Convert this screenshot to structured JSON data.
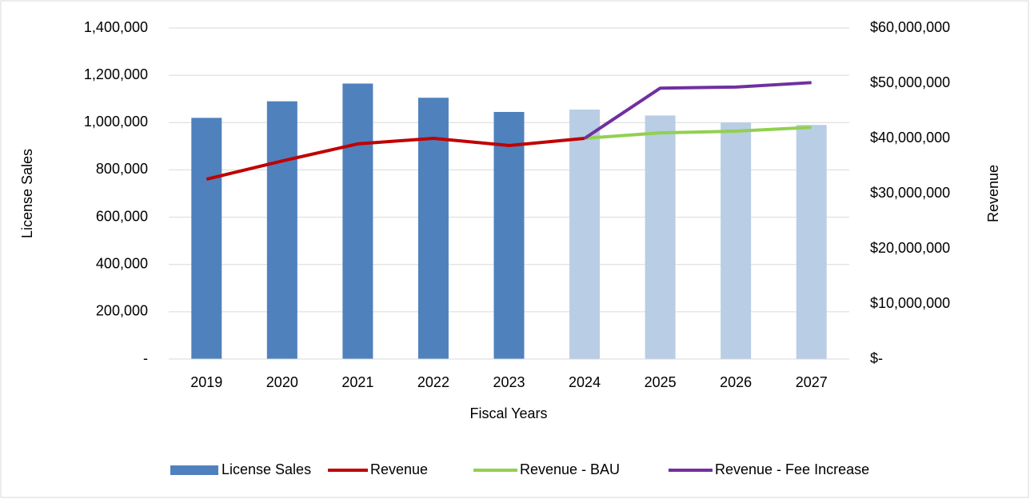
{
  "chart_data": {
    "type": "bar",
    "categories": [
      "2019",
      "2020",
      "2021",
      "2022",
      "2023",
      "2024",
      "2025",
      "2026",
      "2027"
    ],
    "x_label": "Fiscal Years",
    "y_label": "License Sales",
    "y2_label": "Revenue",
    "ylim": [
      0,
      1400000
    ],
    "yticks": [
      {
        "value": 0,
        "label": "-"
      },
      {
        "value": 200000,
        "label": "200,000"
      },
      {
        "value": 400000,
        "label": "400,000"
      },
      {
        "value": 600000,
        "label": "600,000"
      },
      {
        "value": 800000,
        "label": "800,000"
      },
      {
        "value": 1000000,
        "label": "1,000,000"
      },
      {
        "value": 1200000,
        "label": "1,200,000"
      },
      {
        "value": 1400000,
        "label": "1,400,000"
      }
    ],
    "y2lim": [
      0,
      60000000
    ],
    "y2ticks": [
      {
        "value": 0,
        "label": "$-"
      },
      {
        "value": 10000000,
        "label": "$10,000,000"
      },
      {
        "value": 20000000,
        "label": "$20,000,000"
      },
      {
        "value": 30000000,
        "label": "$30,000,000"
      },
      {
        "value": 40000000,
        "label": "$40,000,000"
      },
      {
        "value": 50000000,
        "label": "$50,000,000"
      },
      {
        "value": 60000000,
        "label": "$60,000,000"
      }
    ],
    "grid": true,
    "legend": "bottom",
    "series": [
      {
        "name": "License Sales",
        "type": "bar",
        "color": "#4f81bd",
        "colors": [
          "#4f81bd",
          "#4f81bd",
          "#4f81bd",
          "#4f81bd",
          "#4f81bd",
          "#b9cde5",
          "#b9cde5",
          "#b9cde5",
          "#b9cde5"
        ],
        "values": [
          1020000,
          1090000,
          1165000,
          1105000,
          1045000,
          1055000,
          1030000,
          1000000,
          990000
        ]
      },
      {
        "name": "Revenue",
        "type": "line",
        "axis": "y2",
        "color": "#c00000",
        "values": [
          32600000,
          35900000,
          39000000,
          40000000,
          38700000,
          40000000,
          null,
          null,
          null
        ]
      },
      {
        "name": "Revenue - BAU",
        "type": "line",
        "axis": "y2",
        "color": "#92d050",
        "values": [
          null,
          null,
          null,
          null,
          null,
          40000000,
          41000000,
          41300000,
          42000000
        ]
      },
      {
        "name": "Revenue - Fee Increase",
        "type": "line",
        "axis": "y2",
        "color": "#7030a0",
        "values": [
          null,
          null,
          null,
          null,
          null,
          40000000,
          49100000,
          49300000,
          50100000
        ]
      }
    ]
  }
}
